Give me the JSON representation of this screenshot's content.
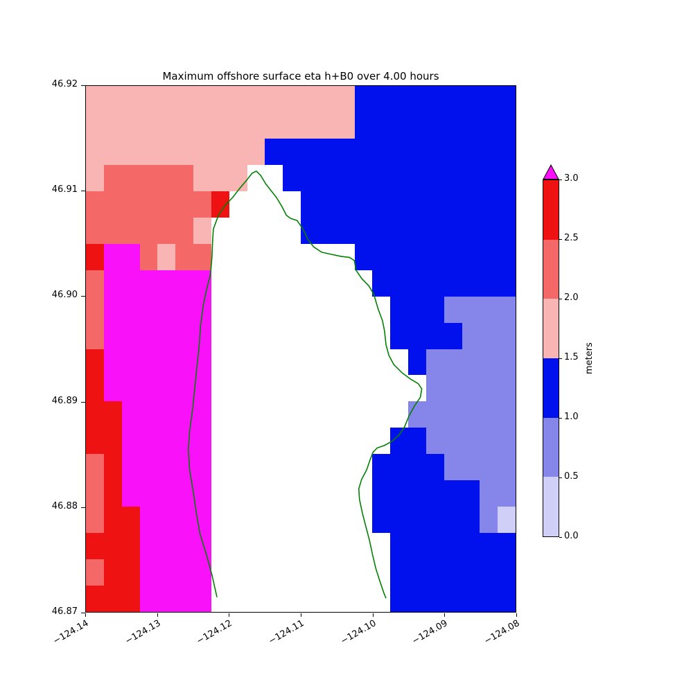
{
  "figure": {
    "title": "Maximum offshore surface eta h+B0 over 4.00 hours"
  },
  "chart_data": {
    "type": "heatmap",
    "title": "Maximum offshore surface eta h+B0 over 4.00 hours",
    "xlabel": "",
    "ylabel": "",
    "x_range": [
      -124.14,
      -124.08
    ],
    "y_range": [
      46.87,
      46.92
    ],
    "x_ticks": {
      "values": [
        -124.14,
        -124.13,
        -124.12,
        -124.11,
        -124.1,
        -124.09,
        -124.08
      ],
      "labels": [
        "−124.14",
        "−124.13",
        "−124.12",
        "−124.11",
        "−124.10",
        "−124.09",
        "−124.08"
      ]
    },
    "y_ticks": {
      "values": [
        46.87,
        46.88,
        46.89,
        46.9,
        46.91,
        46.92
      ],
      "labels": [
        "46.87",
        "46.88",
        "46.89",
        "46.90",
        "46.91",
        "46.92"
      ]
    },
    "cell_size_deg": 0.0025,
    "categories": [
      {
        "id": 0,
        "meaning": "land / masked (no data)",
        "color": "#ffffff"
      },
      {
        "id": 1,
        "meaning": "0.0-0.5 m",
        "color": "#cfcff7"
      },
      {
        "id": 2,
        "meaning": "0.5-1.0 m",
        "color": "#8585ea"
      },
      {
        "id": 3,
        "meaning": "1.0-1.5 m",
        "color": "#0011ee"
      },
      {
        "id": 4,
        "meaning": "1.5-2.0 m",
        "color": "#f9b4b4"
      },
      {
        "id": 5,
        "meaning": "2.0-2.5 m",
        "color": "#f56868"
      },
      {
        "id": 6,
        "meaning": "2.5-3.0 m",
        "color": "#ee1212"
      },
      {
        "id": 7,
        "meaning": "> 3.0 m",
        "color": "#f911f9"
      }
    ],
    "grid": {
      "rows": 20,
      "cols": 24,
      "origin": "top-left cell spans lon -124.14..-124.1375, lat 46.9175..46.92",
      "cells": [
        [
          4,
          4,
          4,
          4,
          4,
          4,
          4,
          4,
          4,
          4,
          4,
          4,
          4,
          4,
          4,
          3,
          3,
          3,
          3,
          3,
          3,
          3,
          3,
          3
        ],
        [
          4,
          4,
          4,
          4,
          4,
          4,
          4,
          4,
          4,
          4,
          4,
          4,
          4,
          4,
          4,
          3,
          3,
          3,
          3,
          3,
          3,
          3,
          3,
          3
        ],
        [
          4,
          4,
          4,
          4,
          4,
          4,
          4,
          4,
          4,
          4,
          3,
          3,
          3,
          3,
          3,
          3,
          3,
          3,
          3,
          3,
          3,
          3,
          3,
          3
        ],
        [
          4,
          5,
          5,
          5,
          5,
          5,
          4,
          4,
          4,
          0,
          0,
          3,
          3,
          3,
          3,
          3,
          3,
          3,
          3,
          3,
          3,
          3,
          3,
          3
        ],
        [
          5,
          5,
          5,
          5,
          5,
          5,
          5,
          6,
          0,
          0,
          0,
          0,
          3,
          3,
          3,
          3,
          3,
          3,
          3,
          3,
          3,
          3,
          3,
          3
        ],
        [
          5,
          5,
          5,
          5,
          5,
          5,
          4,
          0,
          0,
          0,
          0,
          0,
          3,
          3,
          3,
          3,
          3,
          3,
          3,
          3,
          3,
          3,
          3,
          3
        ],
        [
          6,
          7,
          7,
          5,
          4,
          5,
          5,
          0,
          0,
          0,
          0,
          0,
          0,
          0,
          0,
          3,
          3,
          3,
          3,
          3,
          3,
          3,
          3,
          3
        ],
        [
          5,
          7,
          7,
          7,
          7,
          7,
          7,
          0,
          0,
          0,
          0,
          0,
          0,
          0,
          0,
          0,
          3,
          3,
          3,
          3,
          3,
          3,
          3,
          3
        ],
        [
          5,
          7,
          7,
          7,
          7,
          7,
          7,
          0,
          0,
          0,
          0,
          0,
          0,
          0,
          0,
          0,
          0,
          3,
          3,
          3,
          2,
          2,
          2,
          2
        ],
        [
          5,
          7,
          7,
          7,
          7,
          7,
          7,
          0,
          0,
          0,
          0,
          0,
          0,
          0,
          0,
          0,
          0,
          3,
          3,
          3,
          3,
          2,
          2,
          2
        ],
        [
          6,
          7,
          7,
          7,
          7,
          7,
          7,
          0,
          0,
          0,
          0,
          0,
          0,
          0,
          0,
          0,
          0,
          0,
          3,
          2,
          2,
          2,
          2,
          2
        ],
        [
          6,
          7,
          7,
          7,
          7,
          7,
          7,
          0,
          0,
          0,
          0,
          0,
          0,
          0,
          0,
          0,
          0,
          0,
          0,
          2,
          2,
          2,
          2,
          2
        ],
        [
          6,
          6,
          7,
          7,
          7,
          7,
          7,
          0,
          0,
          0,
          0,
          0,
          0,
          0,
          0,
          0,
          0,
          0,
          2,
          2,
          2,
          2,
          2,
          2
        ],
        [
          6,
          6,
          7,
          7,
          7,
          7,
          7,
          0,
          0,
          0,
          0,
          0,
          0,
          0,
          0,
          0,
          0,
          3,
          3,
          2,
          2,
          2,
          2,
          2
        ],
        [
          5,
          6,
          7,
          7,
          7,
          7,
          7,
          0,
          0,
          0,
          0,
          0,
          0,
          0,
          0,
          0,
          3,
          3,
          3,
          3,
          2,
          2,
          2,
          2
        ],
        [
          5,
          6,
          7,
          7,
          7,
          7,
          7,
          0,
          0,
          0,
          0,
          0,
          0,
          0,
          0,
          0,
          3,
          3,
          3,
          3,
          3,
          3,
          2,
          2
        ],
        [
          5,
          6,
          6,
          7,
          7,
          7,
          7,
          0,
          0,
          0,
          0,
          0,
          0,
          0,
          0,
          0,
          3,
          3,
          3,
          3,
          3,
          3,
          2,
          1
        ],
        [
          6,
          6,
          6,
          7,
          7,
          7,
          7,
          0,
          0,
          0,
          0,
          0,
          0,
          0,
          0,
          0,
          0,
          3,
          3,
          3,
          3,
          3,
          3,
          3
        ],
        [
          5,
          6,
          6,
          7,
          7,
          7,
          7,
          0,
          0,
          0,
          0,
          0,
          0,
          0,
          0,
          0,
          0,
          3,
          3,
          3,
          3,
          3,
          3,
          3
        ],
        [
          6,
          6,
          6,
          7,
          7,
          7,
          7,
          0,
          0,
          0,
          0,
          0,
          0,
          0,
          0,
          0,
          0,
          3,
          3,
          3,
          3,
          3,
          3,
          3
        ]
      ]
    },
    "coastline": {
      "name": "coastline-contour",
      "color": "#008000",
      "points": [
        [
          -124.1217,
          46.8714
        ],
        [
          -124.1224,
          46.8735
        ],
        [
          -124.1232,
          46.8755
        ],
        [
          -124.1241,
          46.8775
        ],
        [
          -124.1246,
          46.8795
        ],
        [
          -124.125,
          46.8814
        ],
        [
          -124.1255,
          46.8834
        ],
        [
          -124.1257,
          46.8854
        ],
        [
          -124.1255,
          46.8873
        ],
        [
          -124.1251,
          46.8893
        ],
        [
          -124.1248,
          46.8913
        ],
        [
          -124.1245,
          46.8933
        ],
        [
          -124.1242,
          46.8952
        ],
        [
          -124.124,
          46.8972
        ],
        [
          -124.1236,
          46.8992
        ],
        [
          -124.1231,
          46.9008
        ],
        [
          -124.1226,
          46.9021
        ],
        [
          -124.1224,
          46.9038
        ],
        [
          -124.1223,
          46.9054
        ],
        [
          -124.1222,
          46.9064
        ],
        [
          -124.1215,
          46.9077
        ],
        [
          -124.1205,
          46.9087
        ],
        [
          -124.1195,
          46.9094
        ],
        [
          -124.1186,
          46.9102
        ],
        [
          -124.1176,
          46.911
        ],
        [
          -124.1168,
          46.9117
        ],
        [
          -124.1162,
          46.9119
        ],
        [
          -124.1156,
          46.9115
        ],
        [
          -124.1149,
          46.9107
        ],
        [
          -124.1141,
          46.91
        ],
        [
          -124.1134,
          46.9094
        ],
        [
          -124.1126,
          46.9085
        ],
        [
          -124.112,
          46.9077
        ],
        [
          -124.1114,
          46.9074
        ],
        [
          -124.1105,
          46.9072
        ],
        [
          -124.1097,
          46.9064
        ],
        [
          -124.109,
          46.9054
        ],
        [
          -124.1082,
          46.9047
        ],
        [
          -124.1071,
          46.9042
        ],
        [
          -124.1058,
          46.904
        ],
        [
          -124.1044,
          46.9038
        ],
        [
          -124.1032,
          46.9037
        ],
        [
          -124.1025,
          46.9034
        ],
        [
          -124.1023,
          46.9025
        ],
        [
          -124.1015,
          46.9017
        ],
        [
          -124.1005,
          46.901
        ],
        [
          -124.0998,
          46.9002
        ],
        [
          -124.0992,
          46.8988
        ],
        [
          -124.0986,
          46.8977
        ],
        [
          -124.0983,
          46.8967
        ],
        [
          -124.0981,
          46.8954
        ],
        [
          -124.0977,
          46.8944
        ],
        [
          -124.097,
          46.8935
        ],
        [
          -124.0958,
          46.8927
        ],
        [
          -124.0946,
          46.8921
        ],
        [
          -124.0936,
          46.8917
        ],
        [
          -124.0931,
          46.8912
        ],
        [
          -124.0933,
          46.8904
        ],
        [
          -124.0941,
          46.8896
        ],
        [
          -124.0949,
          46.8886
        ],
        [
          -124.0955,
          46.8876
        ],
        [
          -124.0963,
          46.8868
        ],
        [
          -124.0973,
          46.8862
        ],
        [
          -124.0984,
          46.8858
        ],
        [
          -124.0993,
          46.8856
        ],
        [
          -124.0999,
          46.8852
        ],
        [
          -124.1003,
          46.8845
        ],
        [
          -124.1008,
          46.8835
        ],
        [
          -124.1015,
          46.8826
        ],
        [
          -124.1019,
          46.8817
        ],
        [
          -124.1018,
          46.8807
        ],
        [
          -124.1014,
          46.8794
        ],
        [
          -124.1009,
          46.8781
        ],
        [
          -124.1004,
          46.8768
        ],
        [
          -124.1,
          46.8755
        ],
        [
          -124.0995,
          46.8741
        ],
        [
          -124.0989,
          46.8728
        ],
        [
          -124.0984,
          46.8718
        ],
        [
          -124.0981,
          46.8713
        ]
      ]
    },
    "colorbar": {
      "label": "meters",
      "extend": "max",
      "tick_labels": [
        "0.0",
        "0.5",
        "1.0",
        "1.5",
        "2.0",
        "2.5",
        "3.0"
      ],
      "segments": [
        {
          "range": "0.0-0.5",
          "color": "#cfcff7"
        },
        {
          "range": "0.5-1.0",
          "color": "#8585ea"
        },
        {
          "range": "1.0-1.5",
          "color": "#0011ee"
        },
        {
          "range": "1.5-2.0",
          "color": "#f9b4b4"
        },
        {
          "range": "2.0-2.5",
          "color": "#f56868"
        },
        {
          "range": "2.5-3.0",
          "color": "#ee1212"
        }
      ],
      "over_color": "#f911f9"
    }
  }
}
